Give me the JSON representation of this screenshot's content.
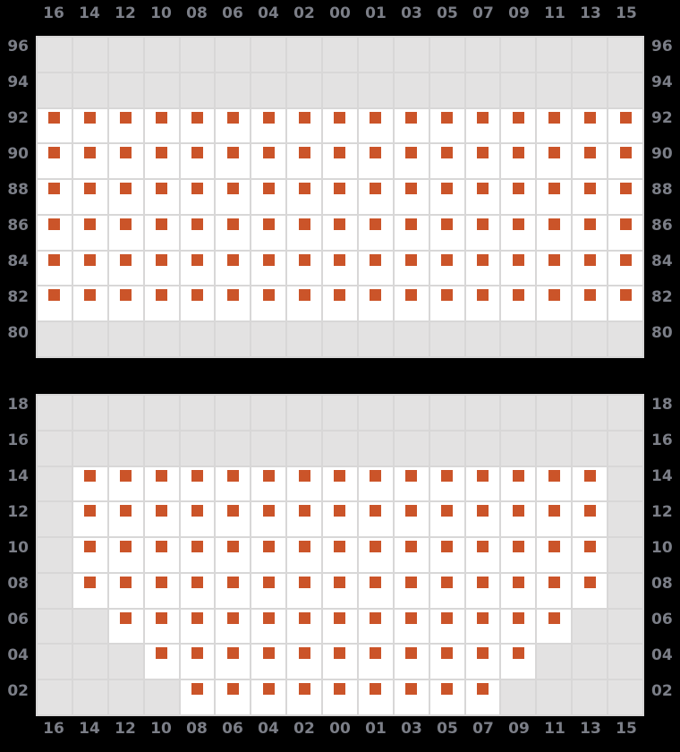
{
  "colors": {
    "background": "#000000",
    "grid_line": "#d8d7d7",
    "cell_empty": "#e3e2e2",
    "cell_available": "#ffffff",
    "marker": "#cb5429",
    "label_text": "#7b7e87"
  },
  "column_labels": [
    "16",
    "14",
    "12",
    "10",
    "08",
    "06",
    "04",
    "02",
    "00",
    "01",
    "03",
    "05",
    "07",
    "09",
    "11",
    "13",
    "15"
  ],
  "upper_block": {
    "rows": [
      {
        "label": "96",
        "cells": "00000000000000000"
      },
      {
        "label": "94",
        "cells": "00000000000000000"
      },
      {
        "label": "92",
        "cells": "11111111111111111"
      },
      {
        "label": "90",
        "cells": "11111111111111111"
      },
      {
        "label": "88",
        "cells": "11111111111111111"
      },
      {
        "label": "86",
        "cells": "11111111111111111"
      },
      {
        "label": "84",
        "cells": "11111111111111111"
      },
      {
        "label": "82",
        "cells": "11111111111111111"
      },
      {
        "label": "80",
        "cells": "00000000000000000"
      }
    ]
  },
  "lower_block": {
    "rows": [
      {
        "label": "18",
        "cells": "00000000000000000"
      },
      {
        "label": "16",
        "cells": "00000000000000000"
      },
      {
        "label": "14",
        "cells": "01111111111111110"
      },
      {
        "label": "12",
        "cells": "01111111111111110"
      },
      {
        "label": "10",
        "cells": "01111111111111110"
      },
      {
        "label": "08",
        "cells": "01111111111111110"
      },
      {
        "label": "06",
        "cells": "00111111111111100"
      },
      {
        "label": "04",
        "cells": "00011111111111000"
      },
      {
        "label": "02",
        "cells": "00001111111110000"
      }
    ]
  }
}
